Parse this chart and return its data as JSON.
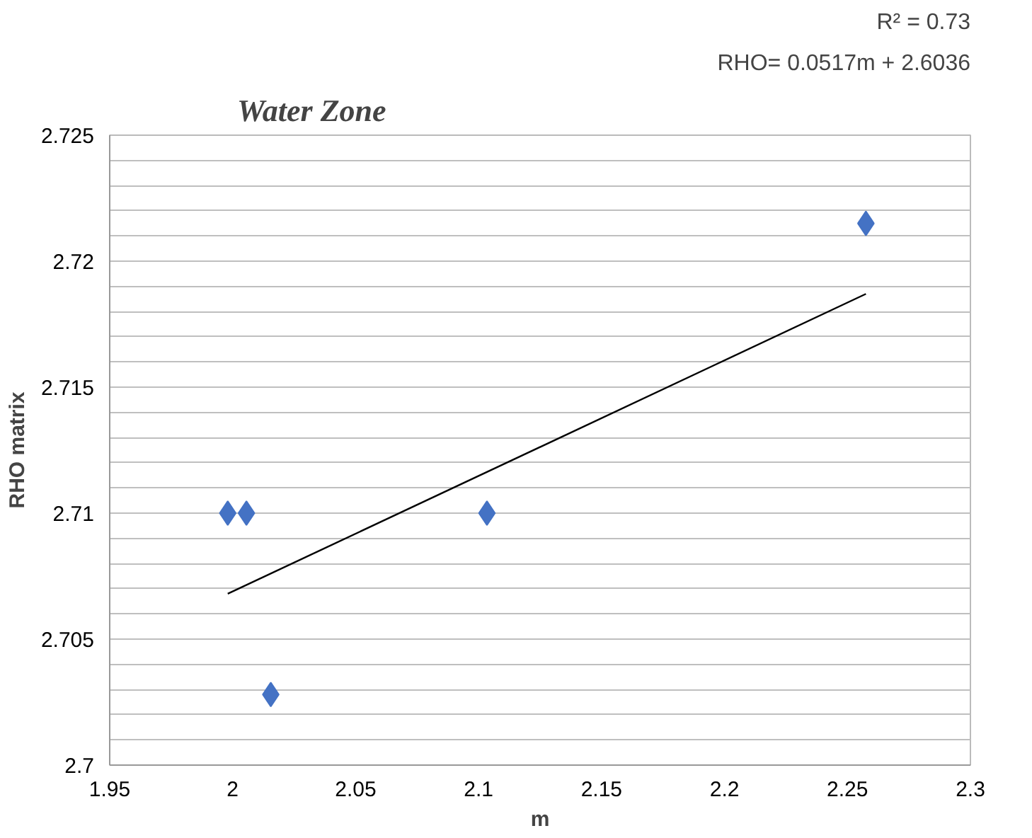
{
  "chart_data": {
    "type": "scatter",
    "title": "Water Zone",
    "xlabel": "m",
    "ylabel": "RHO matrix",
    "annotations": [
      "RHO= 0.0517m + 2.6036",
      "R² = 0.73"
    ],
    "series": [
      {
        "color": "#4472c4",
        "x": [
          1.998,
          2.0056,
          2.0155,
          2.1034,
          2.2575
        ],
        "values": [
          2.71,
          2.71,
          2.7028,
          2.71,
          2.7215
        ],
        "marker": "diamond"
      },
      {
        "type": "line",
        "color": "#000000",
        "x": [
          1.998,
          2.2575
        ],
        "values": [
          2.7068,
          2.7187
        ],
        "marker": "none"
      }
    ],
    "xlim": [
      1.95,
      2.3
    ],
    "xticks": [
      1.95,
      2,
      2.05,
      2.1,
      2.15,
      2.2,
      2.25,
      2.3
    ],
    "ylim": [
      2.7,
      2.725
    ],
    "yticks": [
      2.7,
      {
        "value": 2.701,
        "label": null
      },
      {
        "value": 2.702,
        "label": null
      },
      {
        "value": 2.703,
        "label": null
      },
      {
        "value": 2.704,
        "label": null
      },
      2.705,
      {
        "value": 2.706,
        "label": null
      },
      {
        "value": 2.707,
        "label": null
      },
      {
        "value": 2.708,
        "label": null
      },
      {
        "value": 2.709,
        "label": null
      },
      2.71,
      {
        "value": 2.711,
        "label": null
      },
      {
        "value": 2.712,
        "label": null
      },
      {
        "value": 2.713,
        "label": null
      },
      {
        "value": 2.714,
        "label": null
      },
      2.715,
      {
        "value": 2.716,
        "label": null
      },
      {
        "value": 2.717,
        "label": null
      },
      {
        "value": 2.718,
        "label": null
      },
      {
        "value": 2.719,
        "label": null
      },
      2.72,
      {
        "value": 2.721,
        "label": null
      },
      {
        "value": 2.722,
        "label": null
      },
      {
        "value": 2.723,
        "label": null
      },
      {
        "value": 2.724,
        "label": null
      },
      2.725
    ],
    "grid": "y"
  }
}
